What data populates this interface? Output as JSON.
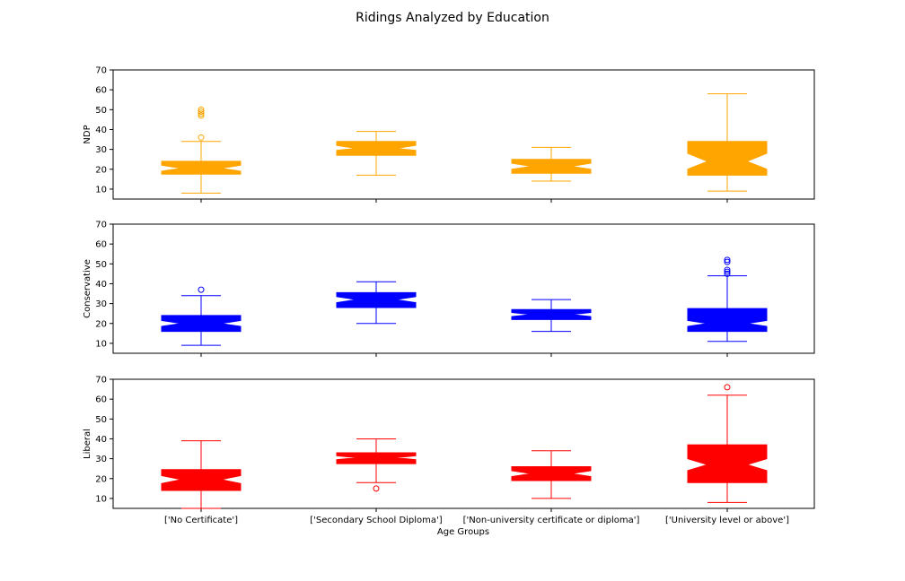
{
  "chart_data": {
    "type": "boxplot",
    "title": "Ridings Analyzed by Education",
    "xlabel": "Age Groups",
    "categories": [
      "['No Certificate']",
      "['Secondary School Diploma']",
      "['Non-university certificate or diploma']",
      "['University level or above']"
    ],
    "ylim": [
      5,
      70
    ],
    "yticks": [
      10,
      20,
      30,
      40,
      50,
      60,
      70
    ],
    "panels": [
      {
        "ylabel": "NDP",
        "color": "#ffa500",
        "boxes": [
          {
            "whislo": 8,
            "q1": 17.5,
            "med": 20.5,
            "q3": 24,
            "whishi": 34,
            "notch_lo": 19,
            "notch_hi": 22,
            "fliers": [
              36,
              47,
              48,
              49,
              50
            ]
          },
          {
            "whislo": 17,
            "q1": 27,
            "med": 30.5,
            "q3": 34,
            "whishi": 39,
            "notch_lo": 29.5,
            "notch_hi": 32,
            "fliers": []
          },
          {
            "whislo": 14,
            "q1": 18,
            "med": 21.5,
            "q3": 25,
            "whishi": 31,
            "notch_lo": 20,
            "notch_hi": 23,
            "fliers": []
          },
          {
            "whislo": 9,
            "q1": 17,
            "med": 24,
            "q3": 34,
            "whishi": 58,
            "notch_lo": 20,
            "notch_hi": 28,
            "fliers": []
          }
        ]
      },
      {
        "ylabel": "Conservative",
        "color": "#0000ff",
        "boxes": [
          {
            "whislo": 9,
            "q1": 16,
            "med": 20,
            "q3": 24,
            "whishi": 34,
            "notch_lo": 18.5,
            "notch_hi": 21.5,
            "fliers": [
              37
            ]
          },
          {
            "whislo": 20,
            "q1": 28,
            "med": 32,
            "q3": 35.5,
            "whishi": 41,
            "notch_lo": 30.5,
            "notch_hi": 33.5,
            "fliers": []
          },
          {
            "whislo": 16,
            "q1": 22,
            "med": 24.5,
            "q3": 27,
            "whishi": 32,
            "notch_lo": 23.5,
            "notch_hi": 25.5,
            "fliers": []
          },
          {
            "whislo": 11,
            "q1": 16,
            "med": 20,
            "q3": 27.5,
            "whishi": 44,
            "notch_lo": 18.5,
            "notch_hi": 21.5,
            "fliers": [
              45,
              46,
              47,
              51,
              52
            ]
          }
        ]
      },
      {
        "ylabel": "Liberal",
        "color": "#ff0000",
        "boxes": [
          {
            "whislo": 5,
            "q1": 14,
            "med": 19.5,
            "q3": 24.5,
            "whishi": 39,
            "notch_lo": 17.5,
            "notch_hi": 21.5,
            "fliers": []
          },
          {
            "whislo": 18,
            "q1": 27.5,
            "med": 30.5,
            "q3": 33,
            "whishi": 40,
            "notch_lo": 29.5,
            "notch_hi": 31.5,
            "fliers": [
              15
            ]
          },
          {
            "whislo": 10,
            "q1": 19,
            "med": 22.5,
            "q3": 26,
            "whishi": 34,
            "notch_lo": 21,
            "notch_hi": 24,
            "fliers": []
          },
          {
            "whislo": 8,
            "q1": 18,
            "med": 27,
            "q3": 37,
            "whishi": 62,
            "notch_lo": 24,
            "notch_hi": 30,
            "fliers": [
              66
            ]
          }
        ]
      }
    ]
  }
}
